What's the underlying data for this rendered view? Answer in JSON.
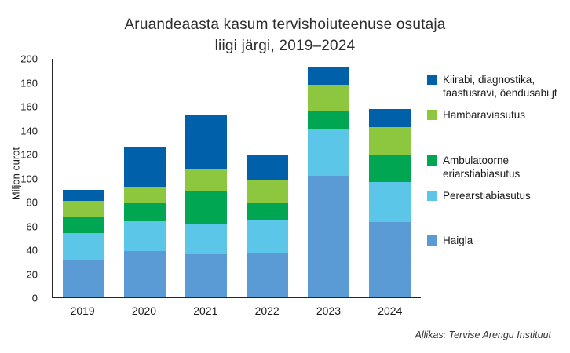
{
  "title": {
    "line1": "Aruandeaasta kasum tervishoiuteenuse osutaja",
    "line2": "liigi järgi, 2019–2024"
  },
  "y_axis": {
    "label": "Miljon eurot"
  },
  "source": "Allikas: Tervise Arengu Instituut",
  "legend": {
    "items": [
      {
        "key": "kiirabi",
        "label": "Kiirabi, diagnostika, taastusravi, õendusabi jt",
        "color": "#0060a9"
      },
      {
        "key": "hambaraviasutus",
        "label": "Hambaraviasutus",
        "color": "#8dc63f"
      },
      {
        "key": "ambulatoorne-eriarstiabiasutus",
        "label": "Ambulatoorne eriarstiabiasutus",
        "color": "#00a651"
      },
      {
        "key": "perearstiabiasutus",
        "label": "Perearstiabiasutus",
        "color": "#5bc6e8"
      },
      {
        "key": "haigla",
        "label": "Haigla",
        "color": "#5b9bd5"
      }
    ]
  },
  "chart_data": {
    "type": "bar",
    "stacked": true,
    "title": "Aruandeaasta kasum tervishoiuteenuse osutaja liigi järgi, 2019–2024",
    "xlabel": "",
    "ylabel": "Miljon eurot",
    "ylim": [
      0,
      200
    ],
    "ytick_step": 20,
    "grid": false,
    "legend_position": "right",
    "categories": [
      "2019",
      "2020",
      "2021",
      "2022",
      "2023",
      "2024"
    ],
    "series": [
      {
        "name": "Haigla",
        "color": "#5b9bd5",
        "values": [
          31,
          39,
          36,
          37,
          102,
          63
        ]
      },
      {
        "name": "Perearstiabiasutus",
        "color": "#5bc6e8",
        "values": [
          23,
          25,
          26,
          28,
          39,
          34
        ]
      },
      {
        "name": "Ambulatoorne eriarstiabiasutus",
        "color": "#00a651",
        "values": [
          14,
          15,
          27,
          14,
          15,
          23
        ]
      },
      {
        "name": "Hambaraviasutus",
        "color": "#8dc63f",
        "values": [
          13,
          14,
          18,
          19,
          22,
          23
        ]
      },
      {
        "name": "Kiirabi, diagnostika, taastusravi, õendusabi jt",
        "color": "#0060a9",
        "values": [
          9,
          33,
          46,
          22,
          15,
          15
        ]
      }
    ]
  }
}
